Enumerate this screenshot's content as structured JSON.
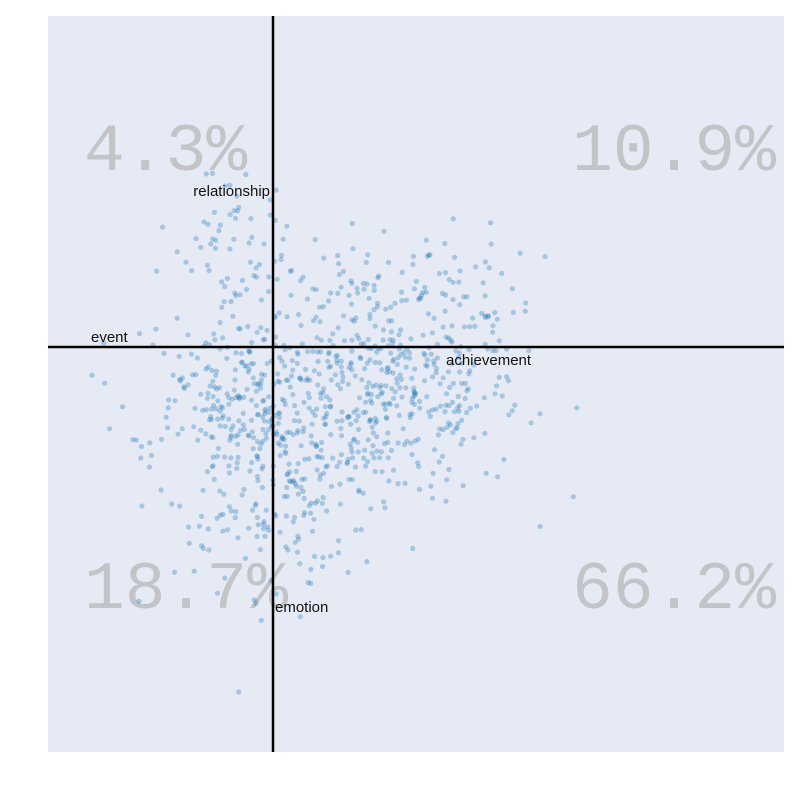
{
  "chart_data": {
    "type": "scatter",
    "xlim": [
      -3.05,
      6.95
    ],
    "ylim": [
      -4.45,
      3.35
    ],
    "axes": {
      "x": 0,
      "y": 0
    },
    "grid": false,
    "colors": {
      "background": "#e5eaf5",
      "points": "#1f77b4",
      "axes": "#000000",
      "quadrant_text": "#c3c4c8"
    },
    "quadrants": [
      {
        "position": "top-left",
        "label": "4.3%"
      },
      {
        "position": "top-right",
        "label": "10.9%"
      },
      {
        "position": "bottom-left",
        "label": "18.7%"
      },
      {
        "position": "bottom-right",
        "label": "66.2%"
      }
    ],
    "annotations": [
      {
        "text": "relationship",
        "x": 0.0,
        "y": 1.67,
        "anchor": "end"
      },
      {
        "text": "event",
        "x": -2.5,
        "y": 0.11,
        "anchor": "start"
      },
      {
        "text": "achievement",
        "x": 2.35,
        "y": -0.12,
        "anchor": "start"
      },
      {
        "text": "emotion",
        "x": 0.0,
        "y": -2.7,
        "anchor": "start"
      }
    ],
    "clusters": [
      {
        "cx": 1.5,
        "cy": -0.65,
        "sx": 0.95,
        "sy": 0.55,
        "n": 420
      },
      {
        "cx": 0.0,
        "cy": -1.2,
        "sx": 0.8,
        "sy": 0.65,
        "n": 260
      },
      {
        "cx": -0.85,
        "cy": -0.55,
        "sx": 0.55,
        "sy": 0.4,
        "n": 90
      },
      {
        "cx": 1.7,
        "cy": 0.45,
        "sx": 0.9,
        "sy": 0.35,
        "n": 90
      },
      {
        "cx": -0.45,
        "cy": 0.6,
        "sx": 0.5,
        "sy": 0.35,
        "n": 40
      },
      {
        "cx": -0.4,
        "cy": 1.3,
        "sx": 0.4,
        "sy": 0.35,
        "n": 22
      },
      {
        "cx": 0.1,
        "cy": -2.1,
        "sx": 0.55,
        "sy": 0.35,
        "n": 40
      }
    ]
  }
}
